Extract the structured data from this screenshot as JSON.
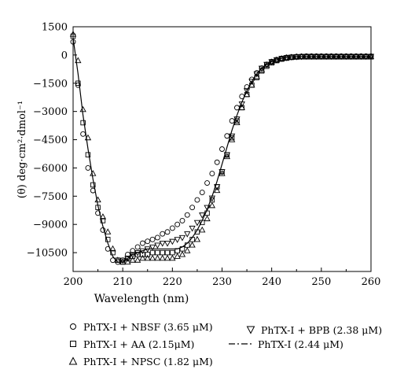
{
  "chart_data": {
    "type": "line",
    "title": "",
    "xlabel": "Wavelength (nm)",
    "ylabel": "(θ) deg·cm²·dmol⁻¹",
    "xlim": [
      200,
      260
    ],
    "ylim": [
      -11500,
      1500
    ],
    "x_ticks": [
      200,
      210,
      220,
      230,
      240,
      250,
      260
    ],
    "y_ticks": [
      1500,
      0,
      -1500,
      -3000,
      -4500,
      -6000,
      -7500,
      -9000,
      -10500
    ],
    "y_tick_labels": [
      "1500",
      "0",
      "−1500",
      "−3000",
      "−4500",
      "−6000",
      "−7500",
      "−9000",
      "−10500"
    ],
    "grid": false,
    "legend_position": "below",
    "series": [
      {
        "name": "PhTX-I + NBSF (3.65 μM)",
        "marker": "circle",
        "x": [
          200,
          201,
          202,
          203,
          204,
          205,
          206,
          207,
          208,
          209,
          210,
          211,
          212,
          213,
          214,
          215,
          216,
          217,
          218,
          219,
          220,
          221,
          222,
          223,
          224,
          225,
          226,
          227,
          228,
          229,
          230,
          231,
          232,
          233,
          234,
          235,
          236,
          237,
          238,
          239,
          240,
          241,
          242,
          243,
          244,
          245,
          246,
          247,
          248,
          249,
          250,
          251,
          252,
          253,
          254,
          255,
          256,
          257,
          258,
          259,
          260
        ],
        "values": [
          700,
          -1600,
          -4200,
          -6000,
          -7200,
          -8400,
          -9300,
          -10300,
          -10900,
          -11000,
          -10900,
          -10600,
          -10400,
          -10200,
          -10000,
          -9900,
          -9800,
          -9700,
          -9500,
          -9400,
          -9200,
          -9000,
          -8800,
          -8500,
          -8100,
          -7700,
          -7300,
          -6800,
          -6300,
          -5700,
          -5000,
          -4300,
          -3500,
          -2800,
          -2200,
          -1700,
          -1300,
          -950,
          -700,
          -500,
          -350,
          -250,
          -180,
          -130,
          -100,
          -80,
          -70,
          -60,
          -60,
          -60,
          -60,
          -60,
          -60,
          -60,
          -60,
          -60,
          -60,
          -60,
          -60,
          -60,
          -60
        ]
      },
      {
        "name": "PhTX-I + AA (2.15μM)",
        "marker": "square",
        "x": [
          200,
          201,
          202,
          203,
          204,
          205,
          206,
          207,
          208,
          209,
          210,
          211,
          212,
          213,
          214,
          215,
          216,
          217,
          218,
          219,
          220,
          221,
          222,
          223,
          224,
          225,
          226,
          227,
          228,
          229,
          230,
          231,
          232,
          233,
          234,
          235,
          236,
          237,
          238,
          239,
          240,
          241,
          242,
          243,
          244,
          245,
          246,
          247,
          248,
          249,
          250,
          251,
          252,
          253,
          254,
          255,
          256,
          257,
          258,
          259,
          260
        ],
        "values": [
          1000,
          -1500,
          -3600,
          -5300,
          -6900,
          -8100,
          -8800,
          -9800,
          -10500,
          -10900,
          -11000,
          -10800,
          -10700,
          -10600,
          -10600,
          -10600,
          -10500,
          -10500,
          -10500,
          -10500,
          -10500,
          -10400,
          -10300,
          -10100,
          -9800,
          -9400,
          -8900,
          -8400,
          -7700,
          -7000,
          -6200,
          -5300,
          -4400,
          -3500,
          -2800,
          -2100,
          -1600,
          -1200,
          -850,
          -600,
          -420,
          -300,
          -220,
          -170,
          -130,
          -110,
          -100,
          -100,
          -100,
          -100,
          -100,
          -100,
          -100,
          -100,
          -100,
          -100,
          -100,
          -100,
          -100,
          -100,
          -100
        ]
      },
      {
        "name": "PhTX-I + NPSC (1.82 μM)",
        "marker": "triangle-up",
        "x": [
          200,
          201,
          202,
          203,
          204,
          205,
          206,
          207,
          208,
          209,
          210,
          211,
          212,
          213,
          214,
          215,
          216,
          217,
          218,
          219,
          220,
          221,
          222,
          223,
          224,
          225,
          226,
          227,
          228,
          229,
          230,
          231,
          232,
          233,
          234,
          235,
          236,
          237,
          238,
          239,
          240,
          241,
          242,
          243,
          244,
          245,
          246,
          247,
          248,
          249,
          250,
          251,
          252,
          253,
          254,
          255,
          256,
          257,
          258,
          259,
          260
        ],
        "values": [
          1100,
          -300,
          -2900,
          -4400,
          -6300,
          -7700,
          -8600,
          -9400,
          -10300,
          -10900,
          -11000,
          -11000,
          -10900,
          -10900,
          -10800,
          -10800,
          -10800,
          -10800,
          -10800,
          -10800,
          -10800,
          -10700,
          -10600,
          -10400,
          -10100,
          -9800,
          -9300,
          -8700,
          -8000,
          -7200,
          -6300,
          -5400,
          -4500,
          -3600,
          -2800,
          -2100,
          -1600,
          -1150,
          -800,
          -550,
          -380,
          -270,
          -200,
          -150,
          -120,
          -100,
          -90,
          -90,
          -90,
          -90,
          -90,
          -90,
          -90,
          -90,
          -90,
          -90,
          -90,
          -90,
          -90,
          -90,
          -90
        ]
      },
      {
        "name": "PhTX-I + BPB (2.38 μM)",
        "marker": "triangle-down",
        "x": [
          210,
          211,
          212,
          213,
          214,
          215,
          216,
          217,
          218,
          219,
          220,
          221,
          222,
          223,
          224,
          225,
          226,
          227,
          228,
          229,
          230,
          231,
          232,
          233,
          234,
          235,
          236,
          237,
          238,
          239,
          240,
          241,
          242,
          243,
          244,
          245,
          246,
          247,
          248,
          249,
          250,
          251,
          252,
          253,
          254,
          255,
          256,
          257,
          258,
          259,
          260
        ],
        "values": [
          -10900,
          -10800,
          -10600,
          -10500,
          -10400,
          -10300,
          -10200,
          -10100,
          -10000,
          -10000,
          -9900,
          -9800,
          -9700,
          -9500,
          -9200,
          -8900,
          -8500,
          -8100,
          -7600,
          -7000,
          -6200,
          -5300,
          -4300,
          -3400,
          -2600,
          -1900,
          -1400,
          -1000,
          -700,
          -500,
          -350,
          -250,
          -180,
          -140,
          -110,
          -90,
          -80,
          -70,
          -70,
          -70,
          -70,
          -70,
          -70,
          -70,
          -70,
          -70,
          -70,
          -70,
          -70,
          -70,
          -70
        ]
      },
      {
        "name": "PhTX-I (2.44 μM)",
        "marker": "none",
        "line": "dash-dot",
        "x": [
          200,
          201,
          202,
          203,
          204,
          205,
          206,
          207,
          208,
          209,
          210,
          211,
          212,
          213,
          214,
          215,
          216,
          217,
          218,
          219,
          220,
          221,
          222,
          223,
          224,
          225,
          226,
          227,
          228,
          229,
          230,
          231,
          232,
          233,
          234,
          235,
          236,
          237,
          238,
          239,
          240,
          241,
          242,
          243,
          244,
          245,
          246,
          247,
          248,
          249,
          250,
          251,
          252,
          253,
          254,
          255,
          256,
          257,
          258,
          259,
          260
        ],
        "values": [
          900,
          -1000,
          -3200,
          -5000,
          -6600,
          -8000,
          -9100,
          -10000,
          -10700,
          -11000,
          -11000,
          -10800,
          -10600,
          -10500,
          -10400,
          -10300,
          -10300,
          -10300,
          -10300,
          -10300,
          -10300,
          -10300,
          -10200,
          -10000,
          -9700,
          -9300,
          -8800,
          -8200,
          -7500,
          -6700,
          -5800,
          -4900,
          -4000,
          -3200,
          -2500,
          -1900,
          -1400,
          -1000,
          -700,
          -500,
          -350,
          -250,
          -180,
          -130,
          -100,
          -90,
          -80,
          -80,
          -80,
          -80,
          -80,
          -80,
          -80,
          -80,
          -80,
          -80,
          -80,
          -80,
          -80,
          -80,
          -80
        ]
      }
    ]
  }
}
